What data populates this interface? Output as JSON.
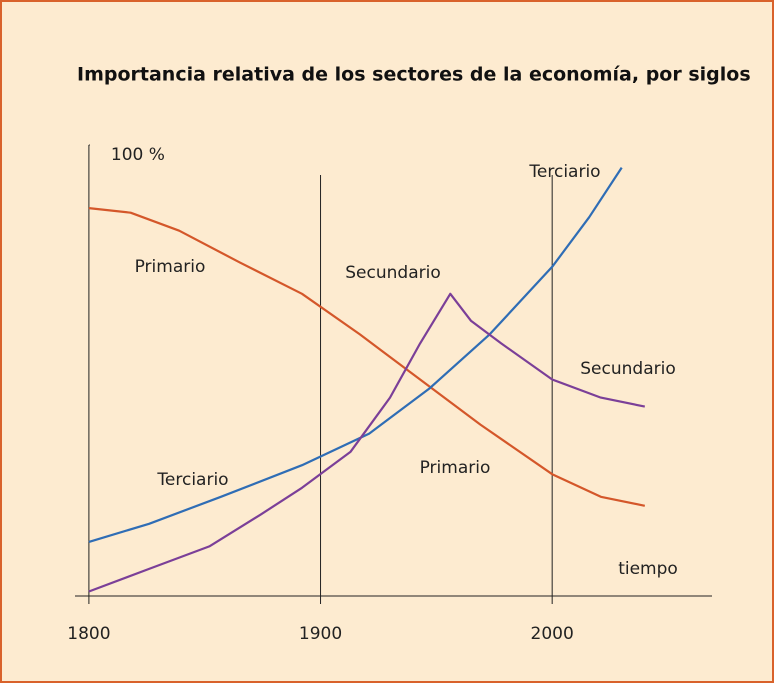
{
  "chart_data": {
    "type": "line",
    "title": "Importancia relativa de los sectores de la economía, por siglos",
    "xlim": [
      1794,
      2069
    ],
    "ylim": [
      0,
      100
    ],
    "xticks": [
      1800,
      1900,
      2000
    ],
    "yticks": [
      {
        "value": 100,
        "label": "100 %"
      }
    ],
    "series": [
      {
        "name": "Primario",
        "color": "#d4572a",
        "x": [
          1800,
          1818,
          1839,
          1865,
          1892,
          1917,
          1943,
          1969,
          2000,
          2021,
          2040
        ],
        "values": [
          86,
          85,
          81,
          74,
          67,
          58,
          48,
          38,
          27,
          22,
          20
        ]
      },
      {
        "name": "Terciario",
        "color": "#2f6db5",
        "x": [
          1800,
          1826,
          1857,
          1892,
          1921,
          1947,
          1973,
          2000,
          2016,
          2030
        ],
        "values": [
          12,
          16,
          22,
          29,
          36,
          46,
          58,
          73,
          84,
          95
        ]
      },
      {
        "name": "Secundario",
        "color": "#7b3f98",
        "x": [
          1800,
          1826,
          1852,
          1874,
          1892,
          1913,
          1930,
          1943,
          1956,
          1965,
          1978,
          2000,
          2021,
          2040
        ],
        "values": [
          1,
          6,
          11,
          18,
          24,
          32,
          44,
          56,
          67,
          61,
          56,
          48,
          44,
          42
        ]
      }
    ],
    "annotations": [
      "Primario",
      "Secundario",
      "Terciario",
      "Terciario",
      "Primario",
      "Secundario",
      "tiempo"
    ]
  }
}
